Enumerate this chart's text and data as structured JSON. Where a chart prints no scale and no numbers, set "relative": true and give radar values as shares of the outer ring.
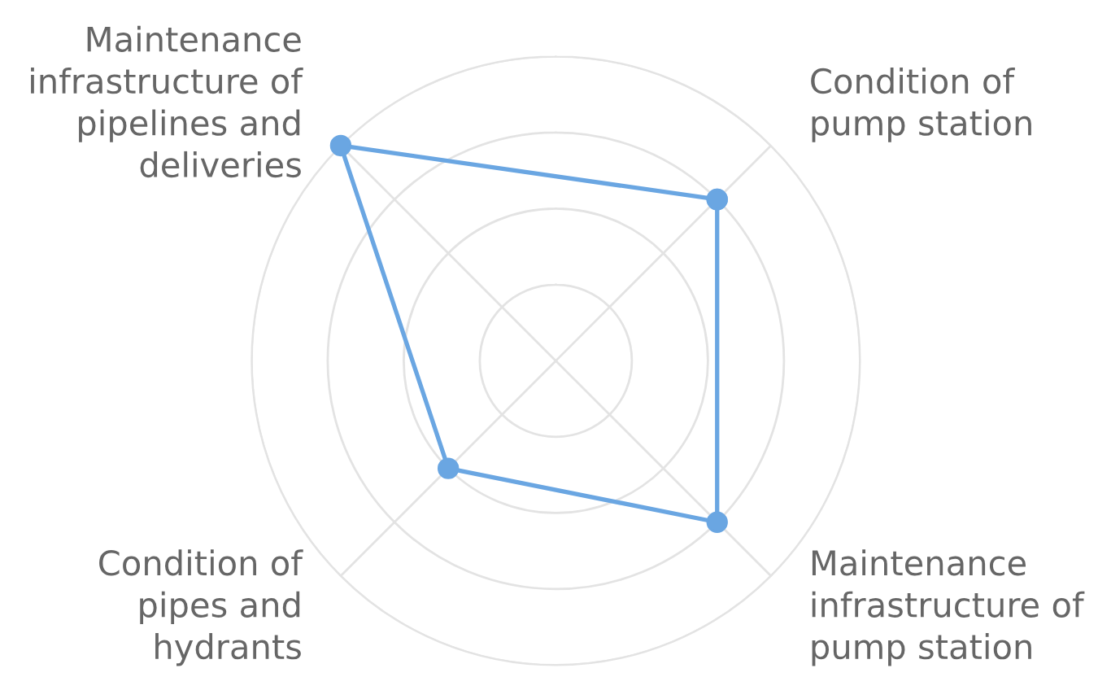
{
  "chart_data": {
    "type": "radar",
    "relative": true,
    "categories": [
      "Condition of\npump station",
      "Maintenance\ninfrastructure of\npump station",
      "Condition of\npipes and\nhydrants",
      "Maintenance\ninfrastructure of\npipelines and\ndeliveries"
    ],
    "series": [
      {
        "color": "#6aa6e2",
        "values": [
          0.75,
          0.75,
          0.5,
          1.0
        ]
      }
    ],
    "grid": true,
    "marker": "circle",
    "line_style": "solid"
  }
}
